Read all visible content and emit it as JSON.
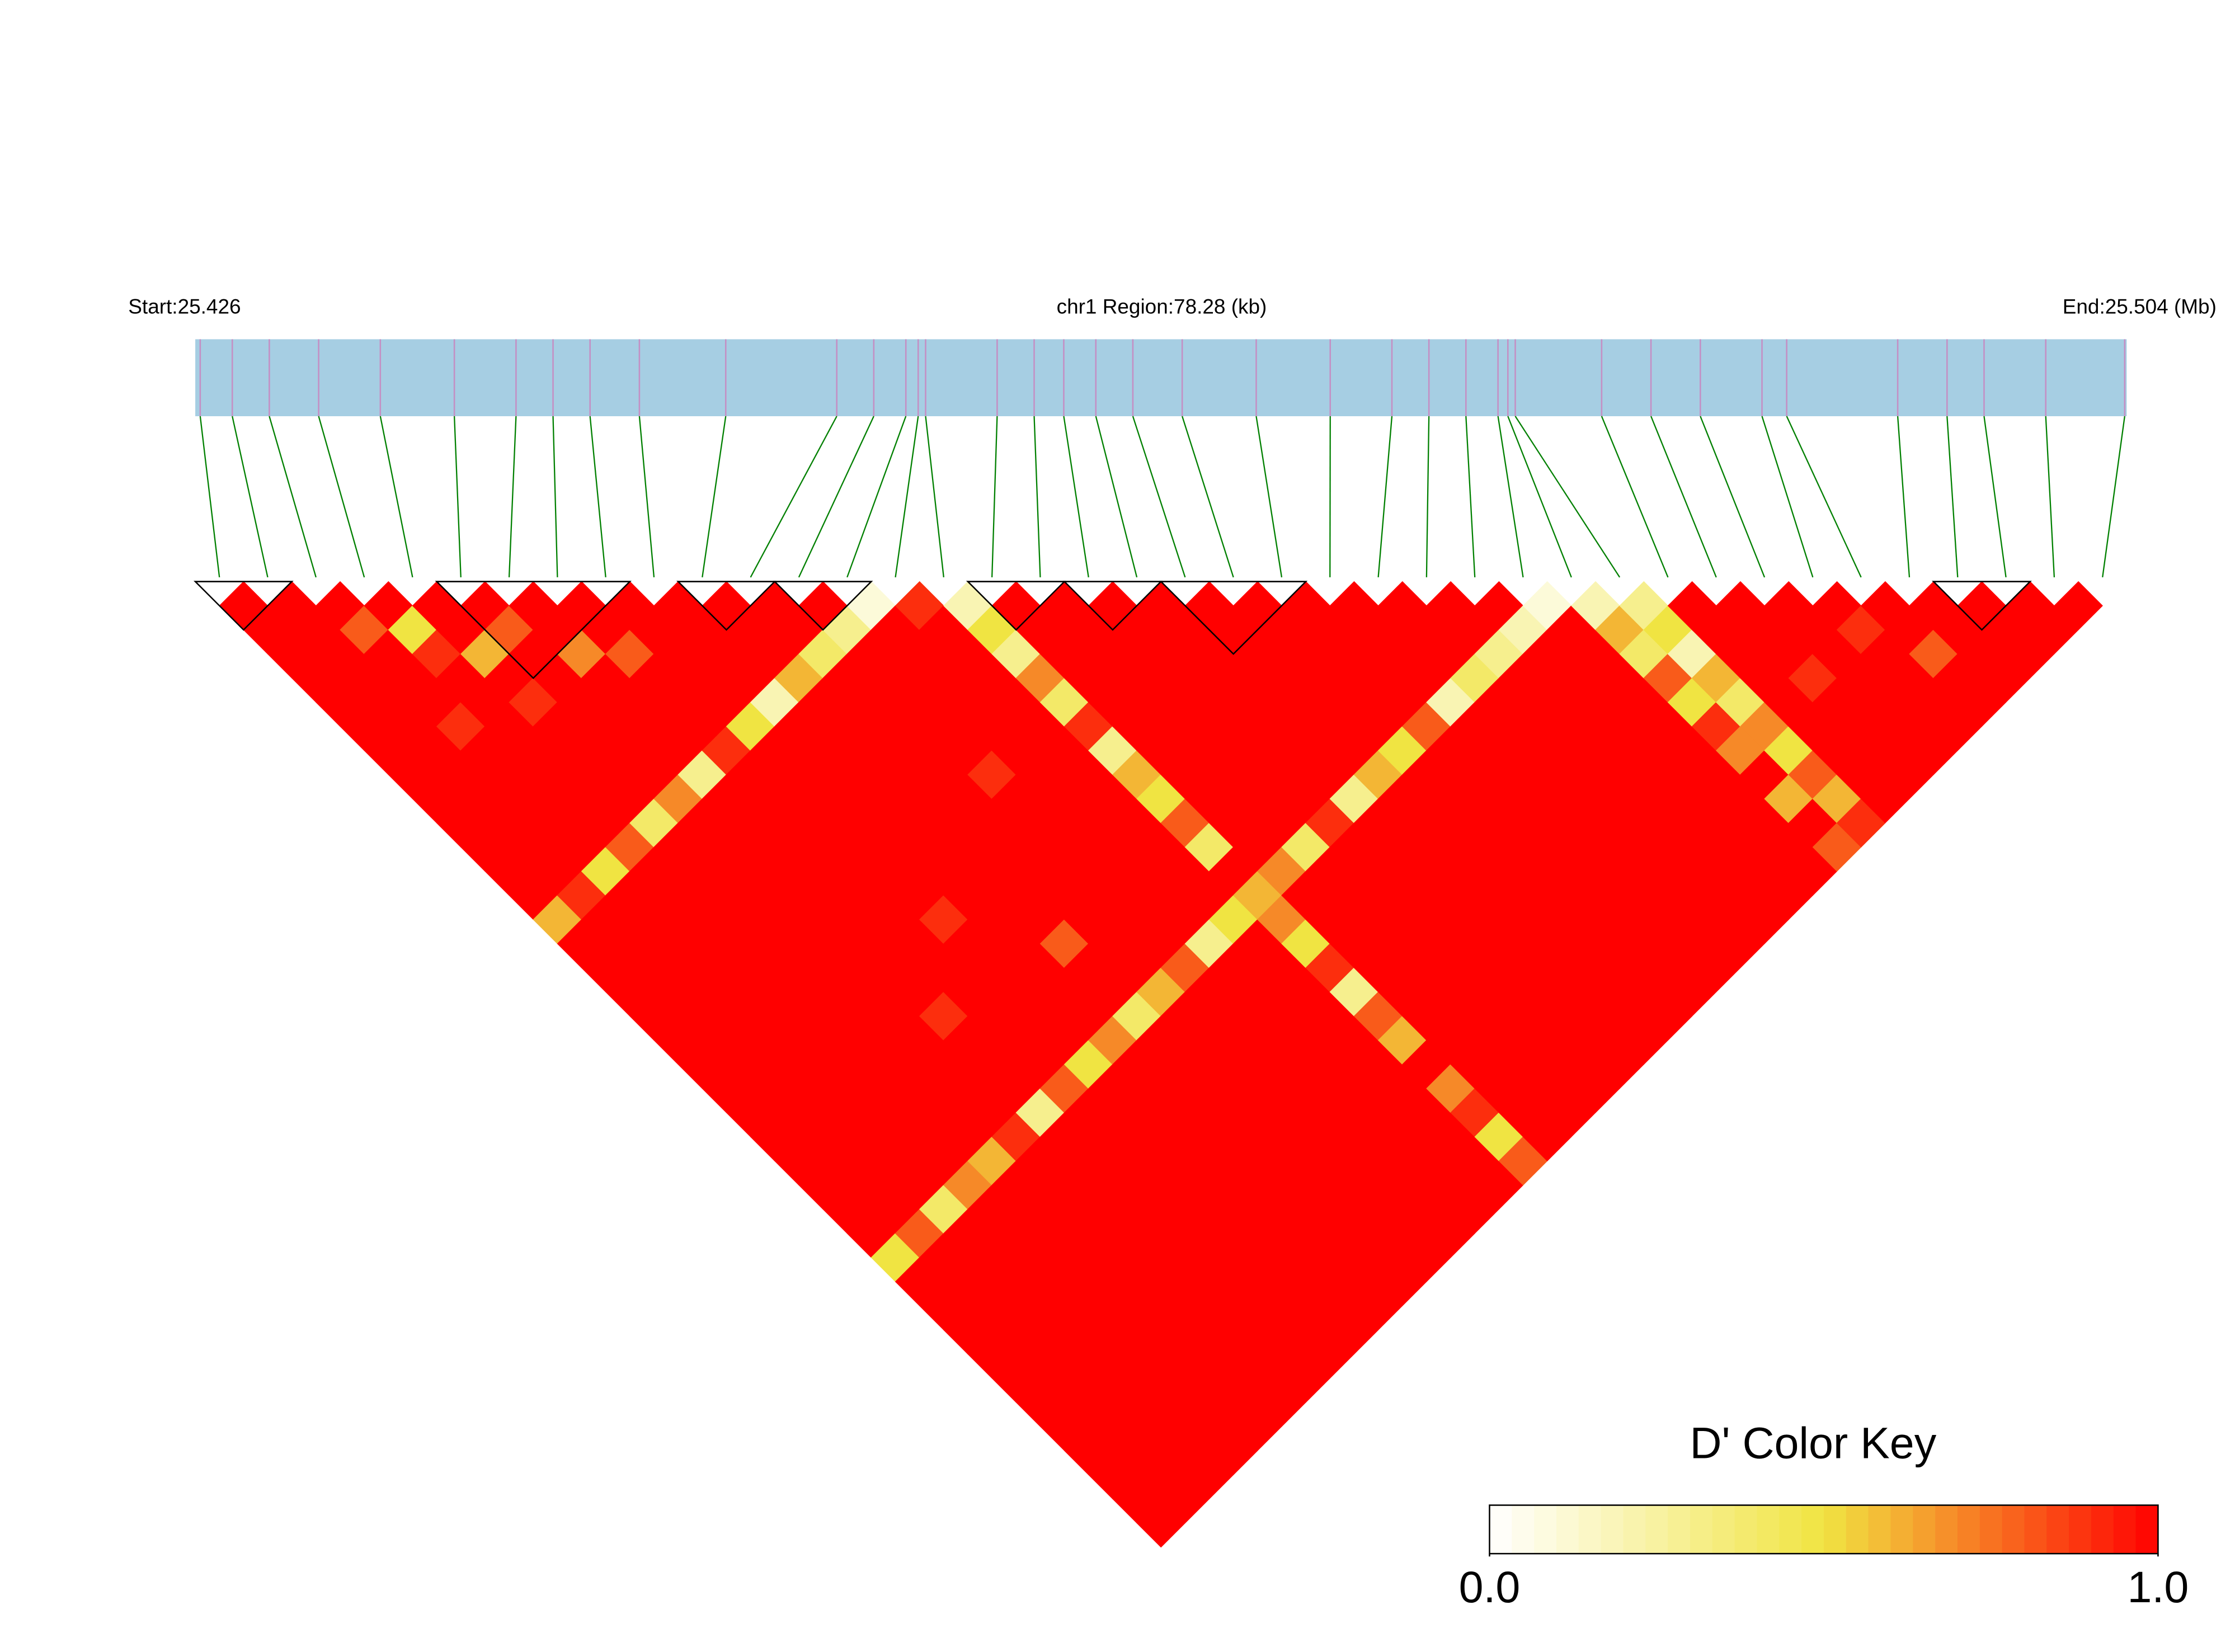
{
  "chart_data": {
    "type": "ld_heatmap",
    "start_label": "Start:25.426",
    "title": "chr1 Region:78.28 (kb)",
    "end_label": "End:25.504 (Mb)",
    "xlim": [
      25.426,
      25.50428
    ],
    "bar_color": "#a6cee3",
    "marker_color": "#c48fc4",
    "connector_color": "#008000",
    "colors": [
      "#ffffff",
      "#f0e442",
      "#ff0000"
    ],
    "positions": [
      25.4262,
      25.4275,
      25.429,
      25.431,
      25.4335,
      25.4365,
      25.439,
      25.4405,
      25.442,
      25.444,
      25.4475,
      25.452,
      25.4535,
      25.4548,
      25.4553,
      25.4556,
      25.4585,
      25.46,
      25.4612,
      25.4625,
      25.464,
      25.466,
      25.469,
      25.472,
      25.4745,
      25.476,
      25.4775,
      25.4788,
      25.4792,
      25.4795,
      25.483,
      25.485,
      25.487,
      25.4895,
      25.4905,
      25.495,
      25.497,
      25.4985,
      25.501,
      25.5042
    ],
    "blocks": [
      [
        0,
        1
      ],
      [
        5,
        8
      ],
      [
        10,
        11
      ],
      [
        12,
        13
      ],
      [
        16,
        17
      ],
      [
        18,
        19
      ],
      [
        20,
        22
      ],
      [
        36,
        37
      ]
    ],
    "dprime": [
      [
        1,
        1,
        1,
        1,
        1,
        1,
        1,
        1,
        1,
        1,
        1,
        1,
        1,
        0.6,
        1,
        1,
        1,
        1,
        1,
        1,
        1,
        1,
        1,
        1,
        1,
        1,
        1,
        0.5,
        1,
        1,
        1,
        1,
        1,
        1,
        1,
        1,
        1,
        1,
        1
      ],
      [
        1,
        1,
        1,
        1,
        1,
        1,
        1,
        1,
        1,
        1,
        1,
        1,
        0.9,
        1,
        1,
        1,
        1,
        1,
        1,
        1,
        1,
        1,
        1,
        1,
        1,
        1,
        0.8,
        1,
        1,
        1,
        1,
        1,
        1,
        1,
        1,
        1,
        1,
        1
      ],
      [
        1,
        0.8,
        1,
        1,
        1,
        0.9,
        1,
        1,
        1,
        1,
        1,
        0.5,
        1,
        1,
        1,
        1,
        1,
        1,
        1,
        1,
        1,
        1,
        1,
        1,
        1,
        0.4,
        1,
        1,
        1,
        1,
        1,
        1,
        1,
        1,
        1,
        1,
        1
      ],
      [
        1,
        0.5,
        0.9,
        1,
        1,
        1,
        1,
        1,
        1,
        1,
        0.8,
        1,
        1,
        1,
        1,
        1,
        1,
        1,
        1,
        1,
        1,
        1,
        1,
        1,
        0.7,
        1,
        1,
        1,
        1,
        1,
        1,
        1,
        1,
        1,
        1,
        1
      ],
      [
        1,
        1,
        0.6,
        1,
        0.9,
        1,
        1,
        1,
        1,
        0.4,
        1,
        1,
        1,
        1,
        1,
        1,
        1,
        1,
        1,
        1,
        1,
        1,
        1,
        0.6,
        1,
        1,
        1,
        1,
        1,
        1,
        1,
        1,
        1,
        1,
        1
      ],
      [
        1,
        0.8,
        1,
        1,
        1,
        1,
        1,
        1,
        0.7,
        1,
        1,
        1,
        1,
        1,
        1,
        1,
        1,
        1,
        1,
        1,
        1,
        1,
        0.9,
        1,
        1,
        1,
        1,
        1,
        1,
        1,
        1,
        1,
        1,
        1
      ],
      [
        1,
        1,
        0.7,
        1,
        1,
        1,
        1,
        0.3,
        1,
        1,
        1,
        1,
        1,
        1,
        1,
        1,
        1,
        0.9,
        1,
        1,
        1,
        0.3,
        1,
        1,
        1,
        1,
        1,
        1,
        1,
        1,
        1,
        1,
        1
      ],
      [
        1,
        1,
        0.8,
        1,
        1,
        1,
        0.9,
        1,
        1,
        1,
        1,
        1,
        1,
        1,
        1,
        1,
        1,
        1,
        1,
        1,
        0.8,
        1,
        1,
        1,
        1,
        1,
        1,
        1,
        1,
        1,
        1,
        1
      ],
      [
        1,
        1,
        1,
        1,
        1,
        0.5,
        1,
        1,
        1,
        1,
        1,
        1,
        1,
        0.9,
        1,
        1,
        1,
        1,
        1,
        0.5,
        1,
        1,
        1,
        1,
        1,
        1,
        1,
        1,
        1,
        1,
        1
      ],
      [
        1,
        1,
        1,
        1,
        0.2,
        1,
        1,
        1,
        1,
        1,
        1,
        1,
        1,
        1,
        1,
        1,
        1,
        1,
        0.7,
        1,
        1,
        1,
        1,
        1,
        1,
        1,
        1,
        1,
        1,
        1
      ],
      [
        1,
        1,
        1,
        0.6,
        1,
        1,
        1,
        1,
        1,
        1,
        1,
        1,
        1,
        1,
        0.8,
        1,
        1,
        0.4,
        1,
        1,
        1,
        1,
        1,
        1,
        1,
        1,
        1,
        1,
        1
      ],
      [
        1,
        1,
        0.4,
        1,
        1,
        1,
        1,
        1,
        1,
        1,
        1,
        1,
        1,
        1,
        1,
        1,
        0.6,
        1,
        1,
        1,
        1,
        1,
        1,
        1,
        1,
        1,
        1,
        1
      ],
      [
        1,
        0.3,
        1,
        1,
        1,
        1,
        1,
        0.9,
        1,
        1,
        1,
        1,
        1,
        1,
        1,
        0.8,
        1,
        1,
        1,
        1,
        1,
        1,
        1,
        1,
        1,
        1,
        1
      ],
      [
        0.1,
        1,
        1,
        1,
        1,
        1,
        1,
        1,
        1,
        1,
        1,
        1,
        1,
        1,
        0.3,
        1,
        1,
        1,
        1,
        1,
        1,
        1,
        1,
        1,
        1,
        1
      ],
      [
        0.9,
        1,
        1,
        1,
        1,
        1,
        1,
        1,
        1,
        1,
        1,
        1,
        1,
        0.5,
        1,
        1,
        1,
        1,
        1,
        1,
        1,
        1,
        1,
        1,
        1
      ],
      [
        0.2,
        0.5,
        0.3,
        0.7,
        0.4,
        0.9,
        0.3,
        0.6,
        0.5,
        0.8,
        0.4,
        1,
        0.6,
        0.7,
        0.5,
        0.9,
        0.3,
        0.8,
        0.6,
        1,
        0.7,
        0.9,
        0.5,
        0.8
      ],
      [
        1,
        1,
        1,
        1,
        1,
        1,
        1,
        1,
        1,
        1,
        1,
        0.7,
        1,
        1,
        1,
        1,
        1,
        1,
        1,
        1,
        1,
        1,
        1
      ],
      [
        1,
        1,
        1,
        1,
        1,
        1,
        1,
        1,
        1,
        1,
        0.4,
        1,
        1,
        1,
        1,
        1,
        1,
        1,
        1,
        1,
        1,
        1
      ],
      [
        1,
        1,
        1,
        1,
        1,
        1,
        1,
        1,
        1,
        0.9,
        1,
        1,
        1,
        1,
        1,
        1,
        1,
        1,
        1,
        1,
        1
      ],
      [
        1,
        1,
        1,
        1,
        1,
        1,
        1,
        1,
        0.3,
        1,
        1,
        1,
        1,
        1,
        1,
        1,
        1,
        1,
        1,
        1
      ],
      [
        1,
        1,
        1,
        1,
        1,
        1,
        1,
        0.6,
        1,
        1,
        1,
        1,
        1,
        1,
        1,
        1,
        1,
        1,
        1
      ],
      [
        1,
        1,
        1,
        1,
        1,
        1,
        0.5,
        1,
        1,
        1,
        1,
        1,
        1,
        1,
        1,
        1,
        1,
        1
      ],
      [
        1,
        1,
        1,
        1,
        1,
        0.8,
        1,
        1,
        1,
        1,
        1,
        1,
        1,
        1,
        1,
        1,
        1
      ],
      [
        1,
        1,
        1,
        1,
        0.2,
        1,
        1,
        1,
        1,
        1,
        1,
        1,
        1,
        1,
        1,
        1
      ],
      [
        1,
        1,
        1,
        0.4,
        1,
        1,
        1,
        1,
        1,
        1,
        1,
        1,
        1,
        1,
        1
      ],
      [
        1,
        1,
        0.3,
        1,
        1,
        1,
        1,
        1,
        1,
        1,
        1,
        1,
        1,
        1
      ],
      [
        1,
        0.2,
        1,
        1,
        1,
        1,
        1,
        1,
        1,
        1,
        1,
        1,
        1
      ],
      [
        0.1,
        1,
        1,
        1,
        1,
        1,
        1,
        1,
        1,
        1,
        1,
        1
      ],
      [
        0.2,
        0.6,
        0.4,
        0.8,
        0.5,
        0.9,
        0.7,
        1,
        0.6,
        1,
        0.8
      ],
      [
        0.3,
        0.5,
        0.2,
        0.6,
        0.4,
        0.7,
        0.5,
        0.8,
        0.6,
        0.9
      ],
      [
        1,
        1,
        1,
        1,
        1,
        1,
        1,
        1,
        1
      ],
      [
        1,
        1,
        1,
        0.9,
        1,
        1,
        1,
        1
      ],
      [
        1,
        1,
        1,
        1,
        1,
        1,
        1
      ],
      [
        1,
        0.9,
        1,
        1,
        1,
        1
      ],
      [
        1,
        1,
        0.8,
        1,
        1
      ],
      [
        1,
        1,
        1,
        1
      ],
      [
        1,
        1,
        1
      ],
      [
        1,
        1
      ],
      [
        1
      ]
    ],
    "color_key": {
      "title": "D' Color Key",
      "ticks": [
        {
          "value": 0,
          "label": "0.0"
        },
        {
          "value": 1,
          "label": "1.0"
        }
      ]
    }
  }
}
